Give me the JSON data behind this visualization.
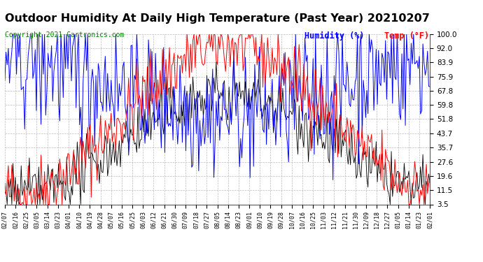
{
  "title": "Outdoor Humidity At Daily High Temperature (Past Year) 20210207",
  "copyright": "Copyright 2021 Cartronics.com",
  "legend_humidity": "Humidity (%)",
  "legend_temp": "Temp (°F)",
  "humidity_color": "blue",
  "temp_color": "red",
  "black_color": "black",
  "yticks": [
    3.5,
    11.5,
    19.6,
    27.6,
    35.7,
    43.7,
    51.8,
    59.8,
    67.8,
    75.9,
    83.9,
    92.0,
    100.0
  ],
  "xtick_labels": [
    "02/07",
    "02/16",
    "02/25",
    "03/05",
    "03/14",
    "03/23",
    "04/01",
    "04/10",
    "04/19",
    "04/28",
    "05/07",
    "05/16",
    "05/25",
    "06/03",
    "06/12",
    "06/21",
    "06/30",
    "07/09",
    "07/18",
    "07/27",
    "08/05",
    "08/14",
    "08/23",
    "09/01",
    "09/10",
    "09/19",
    "09/28",
    "10/07",
    "10/16",
    "10/25",
    "11/03",
    "11/12",
    "11/21",
    "11/30",
    "12/09",
    "12/18",
    "12/27",
    "01/05",
    "01/14",
    "01/23",
    "02/01"
  ],
  "ymin": 3.5,
  "ymax": 100.0,
  "background_color": "#ffffff",
  "grid_color": "#bbbbbb",
  "title_fontsize": 11.5,
  "copyright_fontsize": 7,
  "legend_fontsize": 8.5,
  "ytick_fontsize": 7.5,
  "xtick_fontsize": 6,
  "seed": 42,
  "n_points": 365
}
